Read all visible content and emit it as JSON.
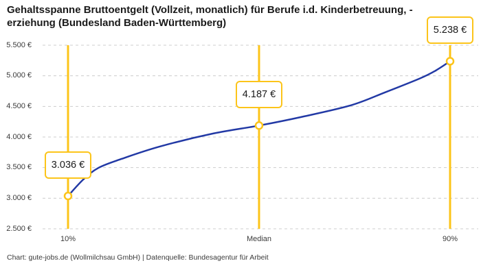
{
  "header": {
    "title_lines": [
      "Gehaltsspanne Bruttoentgelt (Vollzeit, monatlich) für Berufe i.d. Kinderbetreuung, -",
      "erziehung (Bundesland Baden-Württemberg)"
    ]
  },
  "chart_data": {
    "type": "line",
    "title": "Gehaltsspanne Bruttoentgelt (Vollzeit, monatlich) für Berufe i.d. Kinderbetreuung, -erziehung (Bundesland Baden-Württemberg)",
    "xlabel": "",
    "ylabel": "",
    "ylim": [
      2500,
      5500
    ],
    "grid": "horizontal-dashed",
    "legend": "none",
    "yticks": [
      {
        "value": 5500,
        "label": "5.500 €"
      },
      {
        "value": 5000,
        "label": "5.000 €"
      },
      {
        "value": 4500,
        "label": "4.500 €"
      },
      {
        "value": 4000,
        "label": "4.000 €"
      },
      {
        "value": 3500,
        "label": "3.500 €"
      },
      {
        "value": 3000,
        "label": "3.000 €"
      },
      {
        "value": 2500,
        "label": "2.500 €"
      }
    ],
    "points": [
      {
        "x_label": "10%",
        "value": 3036,
        "value_label": "3.036 €",
        "x_frac": 0
      },
      {
        "x_label": "Median",
        "value": 4187,
        "value_label": "4.187 €",
        "x_frac": 0.5
      },
      {
        "x_label": "90%",
        "value": 5238,
        "value_label": "5.238 €",
        "x_frac": 1
      }
    ],
    "curve": [
      {
        "x_frac": 0.0,
        "value": 3036
      },
      {
        "x_frac": 0.04,
        "value": 3306
      },
      {
        "x_frac": 0.08,
        "value": 3497
      },
      {
        "x_frac": 0.14,
        "value": 3642
      },
      {
        "x_frac": 0.24,
        "value": 3844
      },
      {
        "x_frac": 0.38,
        "value": 4057
      },
      {
        "x_frac": 0.5,
        "value": 4187
      },
      {
        "x_frac": 0.61,
        "value": 4326
      },
      {
        "x_frac": 0.74,
        "value": 4517
      },
      {
        "x_frac": 0.83,
        "value": 4730
      },
      {
        "x_frac": 0.92,
        "value": 4954
      },
      {
        "x_frac": 0.96,
        "value": 5077
      },
      {
        "x_frac": 1.0,
        "value": 5238
      }
    ],
    "colors": {
      "accent": "#fcc419",
      "line": "#2239a5",
      "grid": "#cccccc",
      "text": "#1a1a1a"
    }
  },
  "footer": {
    "text": "Chart: gute-jobs.de (Wollmilchsau GmbH) | Datenquelle: Bundesagentur für Arbeit"
  }
}
